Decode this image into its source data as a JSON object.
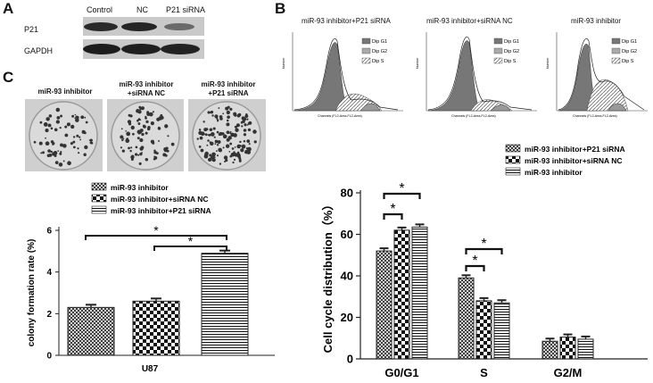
{
  "panel_A": {
    "letter": "A",
    "columns": [
      "Control",
      "NC",
      "P21 siRNA"
    ],
    "rows": [
      "P21",
      "GAPDH"
    ]
  },
  "panel_B": {
    "letter": "B",
    "histograms": [
      {
        "title": "miR-93 inhibitor+P21 siRNA",
        "legend": [
          "Dip G1",
          "Dip G2",
          "Dip S"
        ],
        "ylabel": "Number",
        "xlabel": "Channels (FL2-Area-FL2-Area)"
      },
      {
        "title": "miR-93 inhibitor+siRNA NC",
        "legend": [
          "Dip G1",
          "Dip G2",
          "Dip S"
        ],
        "ylabel": "Number",
        "xlabel": "Channels (FL2-Area-FL2-Area)"
      },
      {
        "title": "miR-93 inhibitor",
        "legend": [
          "Dip G1",
          "Dip G2",
          "Dip S"
        ],
        "ylabel": "Number",
        "xlabel": "Channels (FL2-Area-FL2-Area)"
      }
    ]
  },
  "panel_C": {
    "letter": "C",
    "dish_titles": [
      "miR-93 inhibitor",
      "miR-93 inhibitor\n+siRNA NC",
      "miR-93 inhibitor\n+P21 siRNA"
    ]
  },
  "chart_data": [
    {
      "type": "bar",
      "title": "",
      "xlabel": "U87",
      "ylabel": "colony formation rate (%)",
      "ylim": [
        0,
        6
      ],
      "yticks": [
        "0",
        "2",
        "4",
        "6"
      ],
      "series": [
        {
          "name": "miR-93 inhibitor",
          "values": [
            2.3
          ]
        },
        {
          "name": "miR-93 inhibitor+siRNA NC",
          "values": [
            2.6
          ]
        },
        {
          "name": "miR-93 inhibitor+P21 siRNA",
          "values": [
            4.9
          ]
        }
      ],
      "categories": [
        "U87"
      ],
      "significance": [
        "*",
        "*"
      ],
      "legend_position": "top",
      "grid": false
    },
    {
      "type": "bar",
      "title": "",
      "xlabel": "",
      "ylabel": "Cell cycle distribution（%）",
      "ylim": [
        0,
        80
      ],
      "yticks": [
        "0",
        "20",
        "40",
        "60",
        "80"
      ],
      "categories": [
        "G0/G1",
        "S",
        "G2/M"
      ],
      "series": [
        {
          "name": "miR-93 inhibitor+P21 siRNA",
          "values": [
            52,
            39,
            8.5
          ]
        },
        {
          "name": "miR-93 inhibitor+siRNA NC",
          "values": [
            62,
            28,
            10.5
          ]
        },
        {
          "name": "miR-93 inhibitor",
          "values": [
            63.5,
            27,
            9.5
          ]
        }
      ],
      "significance": [
        "*",
        "*",
        "*",
        "*"
      ],
      "legend_position": "top",
      "grid": false
    }
  ]
}
